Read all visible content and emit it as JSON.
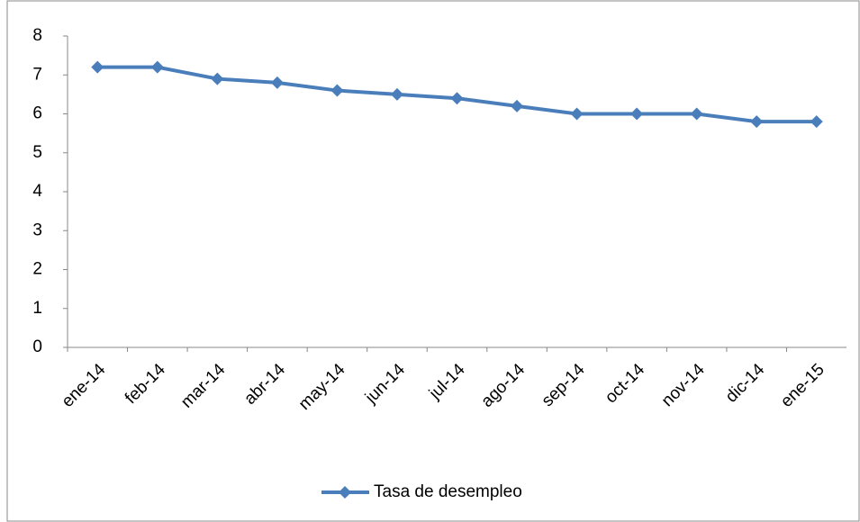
{
  "chart_data": {
    "type": "line",
    "categories": [
      "ene-14",
      "feb-14",
      "mar-14",
      "abr-14",
      "may-14",
      "jun-14",
      "jul-14",
      "ago-14",
      "sep-14",
      "oct-14",
      "nov-14",
      "dic-14",
      "ene-15"
    ],
    "series": [
      {
        "name": "Tasa de desempleo",
        "color": "#4a7ebb",
        "values": [
          7.2,
          7.2,
          6.9,
          6.8,
          6.6,
          6.5,
          6.4,
          6.2,
          6.0,
          6.0,
          6.0,
          5.8,
          5.8
        ]
      }
    ],
    "ylim": [
      0,
      8
    ],
    "yticks": [
      0,
      1,
      2,
      3,
      4,
      5,
      6,
      7,
      8
    ],
    "grid": false,
    "legend": "bottom"
  }
}
